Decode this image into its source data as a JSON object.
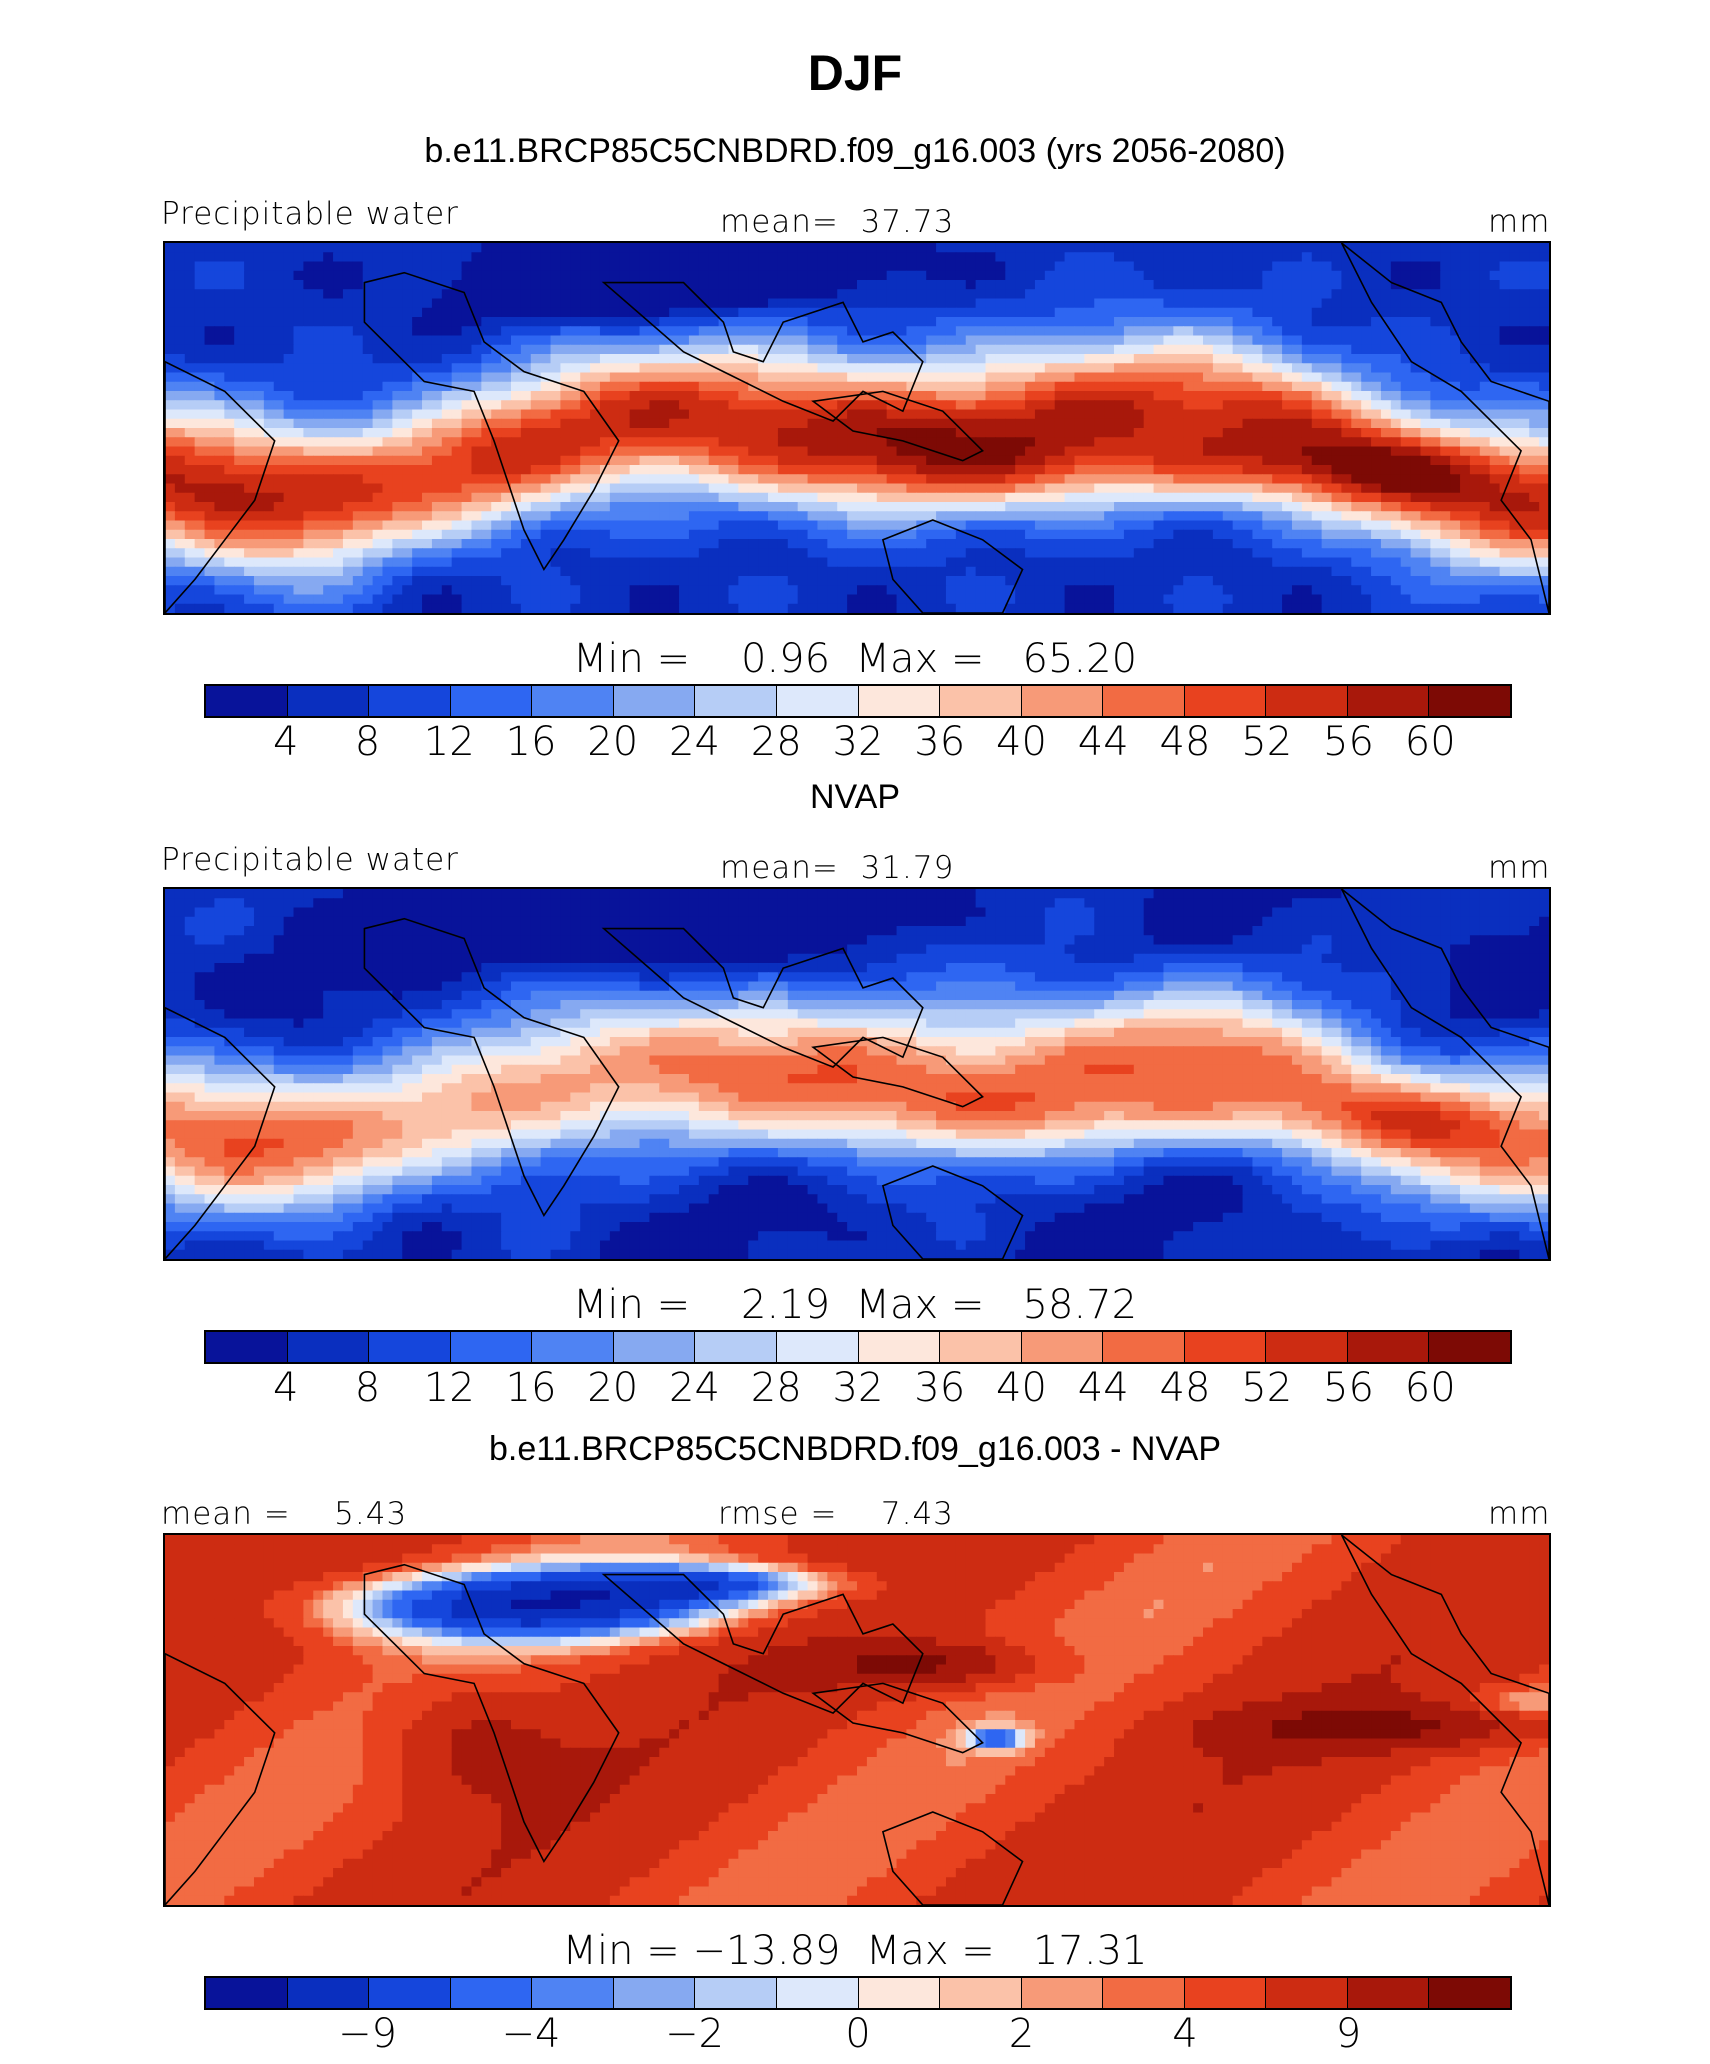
{
  "figure": {
    "title": "DJF",
    "colors": [
      "#08139a",
      "#0a2fbf",
      "#1546dc",
      "#2e66f2",
      "#4f83f3",
      "#86a9f1",
      "#b6cdf6",
      "#dde8fb",
      "#fde7dc",
      "#fbc2a9",
      "#f79a78",
      "#f26b43",
      "#e8421f",
      "#cd2c12",
      "#a8180b",
      "#7d0a05"
    ]
  },
  "panels": [
    {
      "header": "b.e11.BRCP85C5CNBDRD.f09_g16.003 (yrs 2056-2080)",
      "left_label": "Precipitable water",
      "center_label": "mean=  37.73",
      "right_label": "mm",
      "stats": "Min =    0.96  Max =   65.20",
      "ticks": [
        "4",
        "8",
        "12",
        "16",
        "20",
        "24",
        "28",
        "32",
        "36",
        "40",
        "44",
        "48",
        "52",
        "56",
        "60"
      ],
      "field": "model"
    },
    {
      "header": "NVAP",
      "left_label": "Precipitable water",
      "center_label": "mean=  31.79",
      "right_label": "mm",
      "stats": "Min =    2.19  Max =   58.72",
      "ticks": [
        "4",
        "8",
        "12",
        "16",
        "20",
        "24",
        "28",
        "32",
        "36",
        "40",
        "44",
        "48",
        "52",
        "56",
        "60"
      ],
      "field": "obs"
    },
    {
      "header": "b.e11.BRCP85C5CNBDRD.f09_g16.003 - NVAP",
      "left_label": "mean =    5.43",
      "center_label": "rmse =    7.43",
      "right_label": "mm",
      "stats": "Min = −13.89  Max =   17.31",
      "ticks": [
        "−9",
        "−4",
        "−2",
        "0",
        "2",
        "4",
        "9"
      ],
      "field": "diff"
    }
  ]
}
